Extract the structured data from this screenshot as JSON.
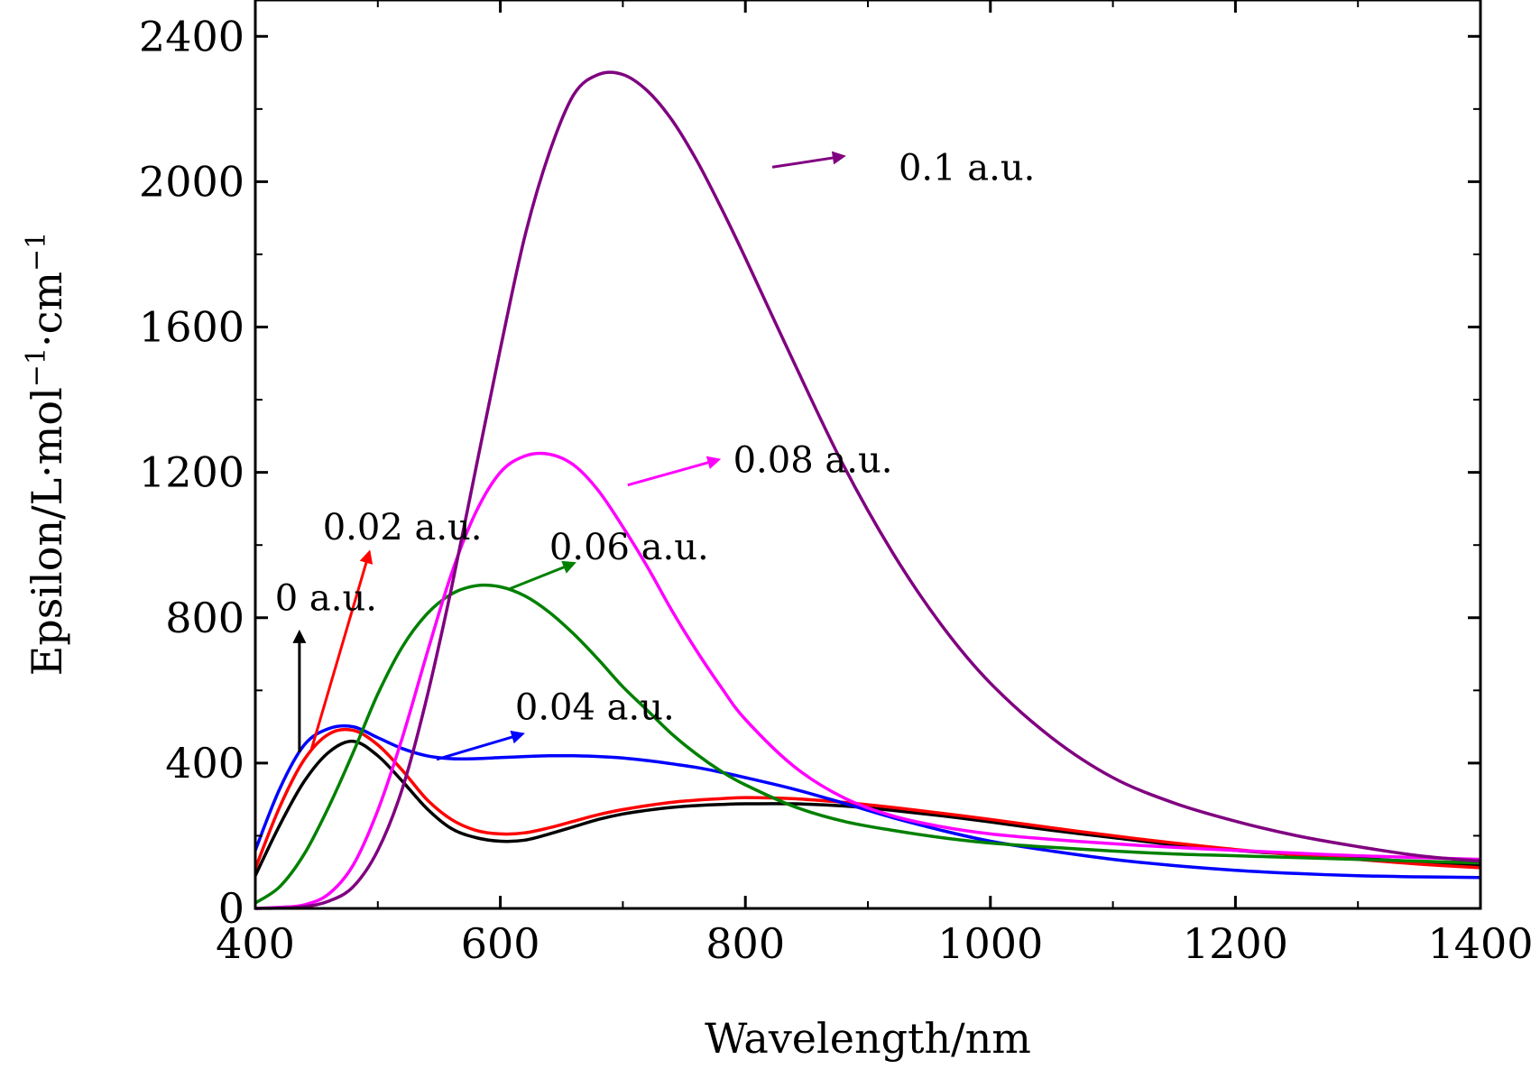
{
  "chart_data": {
    "type": "line",
    "title": "",
    "xlabel": "Wavelength/nm",
    "ylabel_parts": [
      "Epsilon/L·mol",
      "−1",
      "·cm",
      "−1"
    ],
    "xlim": [
      400,
      1400
    ],
    "ylim": [
      0,
      2500
    ],
    "xticks": [
      400,
      600,
      800,
      1000,
      1200,
      1400
    ],
    "yticks": [
      0,
      400,
      800,
      1200,
      1600,
      2000,
      2400
    ],
    "x": [
      400,
      420,
      440,
      460,
      480,
      500,
      520,
      540,
      560,
      580,
      600,
      620,
      640,
      660,
      680,
      700,
      720,
      740,
      760,
      780,
      800,
      840,
      880,
      920,
      960,
      1000,
      1050,
      1100,
      1150,
      1200,
      1250,
      1300,
      1350,
      1400
    ],
    "series": [
      {
        "name": "0 a.u.",
        "color": "#000000",
        "values": [
          90,
          230,
          350,
          430,
          460,
          420,
          350,
          275,
          220,
          195,
          185,
          188,
          205,
          225,
          245,
          260,
          270,
          278,
          283,
          286,
          288,
          288,
          282,
          270,
          255,
          238,
          215,
          195,
          175,
          160,
          148,
          138,
          128,
          120
        ]
      },
      {
        "name": "0.02 a.u.",
        "color": "#ff0000",
        "values": [
          110,
          280,
          410,
          480,
          490,
          450,
          380,
          300,
          245,
          215,
          205,
          208,
          222,
          240,
          258,
          272,
          283,
          292,
          298,
          302,
          305,
          302,
          292,
          278,
          262,
          245,
          222,
          200,
          180,
          162,
          148,
          135,
          122,
          112
        ]
      },
      {
        "name": "0.04 a.u.",
        "color": "#0000ff",
        "values": [
          160,
          330,
          450,
          495,
          500,
          470,
          440,
          420,
          412,
          412,
          415,
          418,
          420,
          420,
          418,
          414,
          407,
          398,
          388,
          375,
          360,
          328,
          290,
          250,
          215,
          185,
          158,
          135,
          118,
          105,
          96,
          90,
          87,
          85
        ]
      },
      {
        "name": "0.06 a.u.",
        "color": "#008000",
        "values": [
          15,
          60,
          150,
          280,
          430,
          590,
          720,
          810,
          865,
          888,
          885,
          860,
          815,
          755,
          685,
          610,
          545,
          480,
          425,
          378,
          340,
          280,
          240,
          215,
          195,
          180,
          168,
          158,
          150,
          145,
          140,
          135,
          130,
          125
        ]
      },
      {
        "name": "0.08 a.u.",
        "color": "#ff00ff",
        "values": [
          0,
          3,
          10,
          40,
          120,
          270,
          470,
          700,
          920,
          1090,
          1200,
          1245,
          1250,
          1220,
          1150,
          1050,
          940,
          820,
          710,
          610,
          520,
          390,
          305,
          255,
          225,
          205,
          190,
          178,
          168,
          160,
          152,
          145,
          140,
          135
        ]
      },
      {
        "name": "0.1 a.u.",
        "color": "#800080",
        "values": [
          0,
          1,
          5,
          20,
          60,
          160,
          330,
          580,
          880,
          1210,
          1540,
          1850,
          2080,
          2240,
          2295,
          2295,
          2250,
          2170,
          2060,
          1930,
          1790,
          1500,
          1220,
          980,
          780,
          620,
          470,
          360,
          290,
          240,
          200,
          170,
          145,
          130
        ]
      }
    ],
    "annotations": [
      {
        "text": "0.1 a.u.",
        "color": "#800080",
        "arrow_from": [
          822,
          2040
        ],
        "arrow_to": [
          880,
          2070
        ],
        "label_at": [
          925,
          2040
        ]
      },
      {
        "text": "0.08 a.u.",
        "color": "#ff00ff",
        "arrow_from": [
          704,
          1165
        ],
        "arrow_to": [
          778,
          1235
        ],
        "label_at": [
          790,
          1235
        ]
      },
      {
        "text": "0.06 a.u.",
        "color": "#008000",
        "arrow_from": [
          608,
          880
        ],
        "arrow_to": [
          660,
          950
        ],
        "label_at": [
          640,
          995
        ]
      },
      {
        "text": "0.04 a.u.",
        "color": "#0000ff",
        "arrow_from": [
          548,
          410
        ],
        "arrow_to": [
          618,
          480
        ],
        "label_at": [
          612,
          555
        ]
      },
      {
        "text": "0.02 a.u.",
        "color": "#ff0000",
        "arrow_from": [
          446,
          440
        ],
        "arrow_to": [
          493,
          980
        ],
        "label_at": [
          455,
          1050
        ]
      },
      {
        "text": "0 a.u.",
        "color": "#000000",
        "arrow_from": [
          436,
          430
        ],
        "arrow_to": [
          436,
          760
        ],
        "label_at": [
          416,
          855
        ]
      }
    ]
  }
}
